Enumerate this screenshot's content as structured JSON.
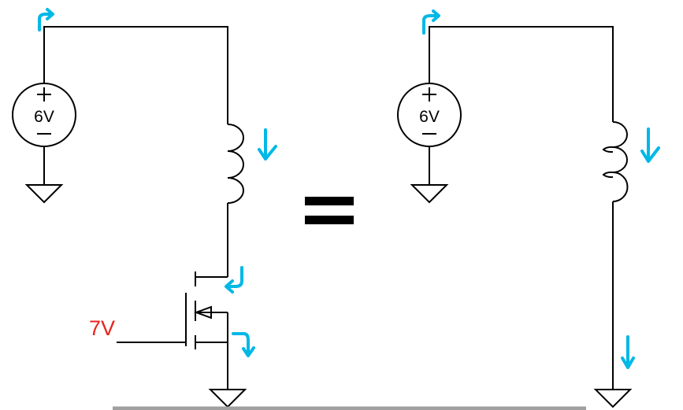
{
  "left_circuit": {
    "source_label": "6V",
    "gate_label": "7V",
    "gate_label_color": "#e8241c"
  },
  "right_circuit": {
    "source_label": "6V"
  },
  "colors": {
    "current_arrows": "#00b8e6",
    "wires": "#000000",
    "baseline": "#a0a0a0"
  },
  "icons": {
    "source": "voltage-source-icon",
    "ground": "ground-icon",
    "inductor": "inductor-icon",
    "transistor": "nmos-transistor-icon",
    "equals": "equals-icon",
    "arrow": "current-arrow-icon"
  }
}
